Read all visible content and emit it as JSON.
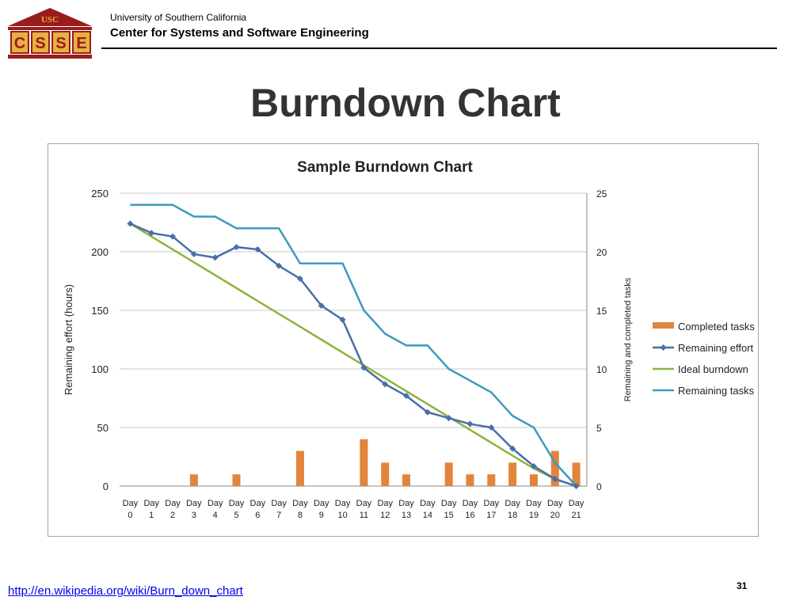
{
  "header": {
    "logo_top_text": "USC",
    "logo_letters": [
      "C",
      "S",
      "S",
      "E"
    ],
    "university": "University of Southern California",
    "center": "Center for Systems and Software Engineering"
  },
  "slide": {
    "title": "Burndown Chart",
    "footer_link": "http://en.wikipedia.org/wiki/Burn_down_chart",
    "page_number": "31"
  },
  "colors": {
    "logo_red": "#9a1c1c",
    "logo_gold": "#e8b040",
    "completed_tasks": "#e2843c",
    "remaining_effort": "#4a6ea8",
    "ideal_burndown": "#8cb43c",
    "remaining_tasks": "#3c9bbf"
  },
  "chart_data": {
    "type": "bar",
    "title": "Sample Burndown Chart",
    "ylabel": "Remaining effort (hours)",
    "y2label": "Remaining and completed tasks",
    "ylim": [
      0,
      250
    ],
    "y2lim": [
      0,
      25
    ],
    "yticks": [
      0,
      50,
      100,
      150,
      200,
      250
    ],
    "y2ticks": [
      0,
      5,
      10,
      15,
      20,
      25
    ],
    "grid": true,
    "legend_position": "right",
    "categories": [
      "Day 0",
      "Day 1",
      "Day 2",
      "Day 3",
      "Day 4",
      "Day 5",
      "Day 6",
      "Day 7",
      "Day 8",
      "Day 9",
      "Day 10",
      "Day 11",
      "Day 12",
      "Day 13",
      "Day 14",
      "Day 15",
      "Day 16",
      "Day 17",
      "Day 18",
      "Day 19",
      "Day 20",
      "Day 21"
    ],
    "series": [
      {
        "name": "Completed tasks",
        "type": "bar",
        "axis": "right",
        "values": [
          0,
          0,
          0,
          1,
          0,
          1,
          0,
          0,
          3,
          0,
          0,
          4,
          2,
          1,
          0,
          2,
          1,
          1,
          2,
          1,
          3,
          2
        ]
      },
      {
        "name": "Remaining effort",
        "type": "line",
        "marker": "diamond",
        "axis": "left",
        "values": [
          224,
          216,
          213,
          198,
          195,
          204,
          202,
          188,
          177,
          154,
          142,
          101,
          87,
          77,
          63,
          58,
          53,
          50,
          32,
          17,
          6,
          0
        ]
      },
      {
        "name": "Ideal burndown",
        "type": "line",
        "axis": "left",
        "values": [
          224,
          213,
          202,
          191,
          180,
          169,
          158,
          147,
          136,
          125,
          114,
          103,
          92,
          81,
          70,
          59,
          48,
          37,
          26,
          15,
          6,
          0
        ]
      },
      {
        "name": "Remaining tasks",
        "type": "step-line",
        "axis": "right",
        "values": [
          24,
          24,
          24,
          23,
          23,
          22,
          22,
          22,
          19,
          19,
          19,
          15,
          13,
          12,
          12,
          10,
          9,
          8,
          6,
          5,
          2,
          0
        ]
      }
    ]
  }
}
